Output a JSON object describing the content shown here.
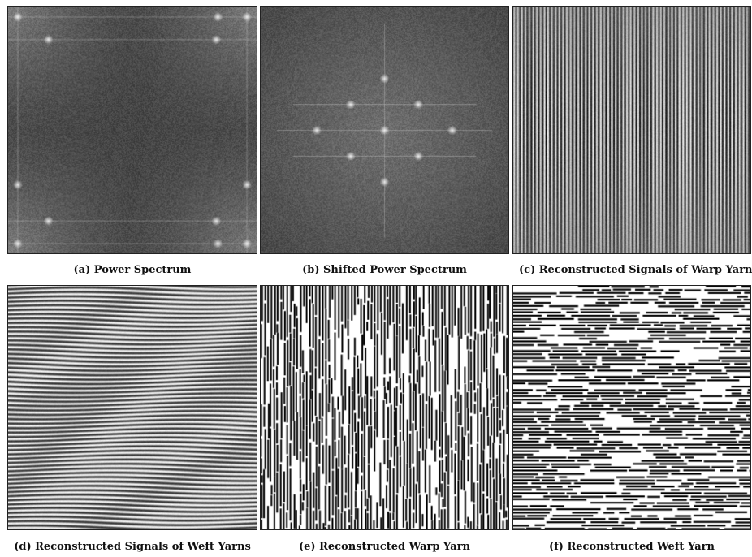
{
  "figure": {
    "panels": [
      {
        "id": "a",
        "caption": "(a) Power Spectrum",
        "kind": "spectrum-unshifted"
      },
      {
        "id": "b",
        "caption": "(b) Shifted Power Spectrum",
        "kind": "spectrum-shifted"
      },
      {
        "id": "c",
        "caption": "(c) Reconstructed Signals of Warp Yarns",
        "kind": "warp-signal"
      },
      {
        "id": "d",
        "caption": "(d) Reconstructed Signals of Weft Yarns",
        "kind": "weft-signal"
      },
      {
        "id": "e",
        "caption": "(e) Reconstructed Warp Yarn",
        "kind": "warp-binary"
      },
      {
        "id": "f",
        "caption": "(f) Reconstructed Weft Yarn",
        "kind": "weft-binary"
      }
    ]
  }
}
